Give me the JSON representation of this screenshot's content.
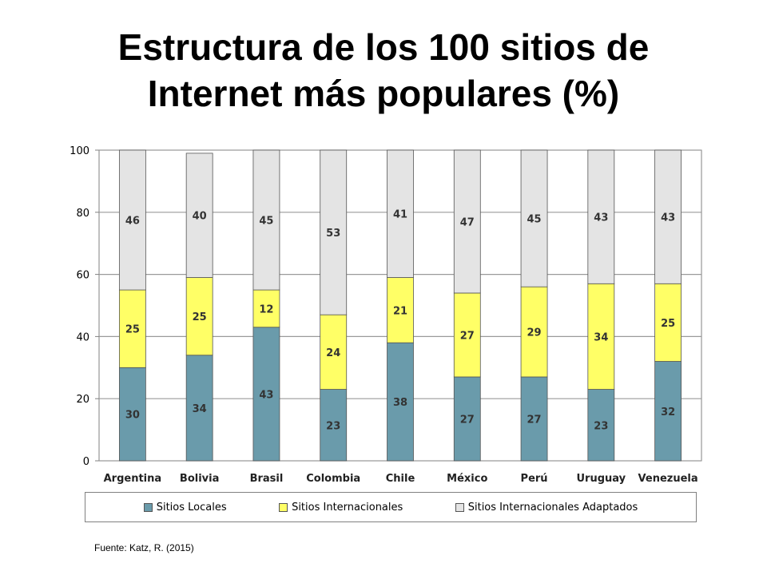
{
  "title_lines": [
    "Estructura de los 100 sitios de",
    "Internet más populares (%)"
  ],
  "source": "Fuente: Katz, R. (2015)",
  "colors": {
    "local": "#6a9bab",
    "internacional": "#ffff66",
    "adaptado": "#e4e4e4",
    "bar_border": "#555555",
    "grid": "#9a9a9a"
  },
  "chart_data": {
    "type": "bar",
    "stacked": true,
    "title": "Estructura de los 100 sitios de Internet más populares (%)",
    "categories": [
      "Argentina",
      "Bolivia",
      "Brasil",
      "Colombia",
      "Chile",
      "México",
      "Perú",
      "Uruguay",
      "Venezuela"
    ],
    "series": [
      {
        "name": "Sitios Locales",
        "values": [
          30,
          34,
          43,
          23,
          38,
          27,
          27,
          23,
          32
        ]
      },
      {
        "name": "Sitios Internacionales",
        "values": [
          25,
          25,
          12,
          24,
          21,
          27,
          29,
          34,
          25
        ]
      },
      {
        "name": "Sitios Internacionales Adaptados",
        "values": [
          46,
          40,
          45,
          53,
          41,
          47,
          45,
          43,
          43
        ]
      }
    ],
    "ylim": [
      0,
      100
    ],
    "yticks": [
      0,
      20,
      40,
      60,
      80,
      100
    ],
    "grid": true,
    "legend_position": "bottom"
  }
}
